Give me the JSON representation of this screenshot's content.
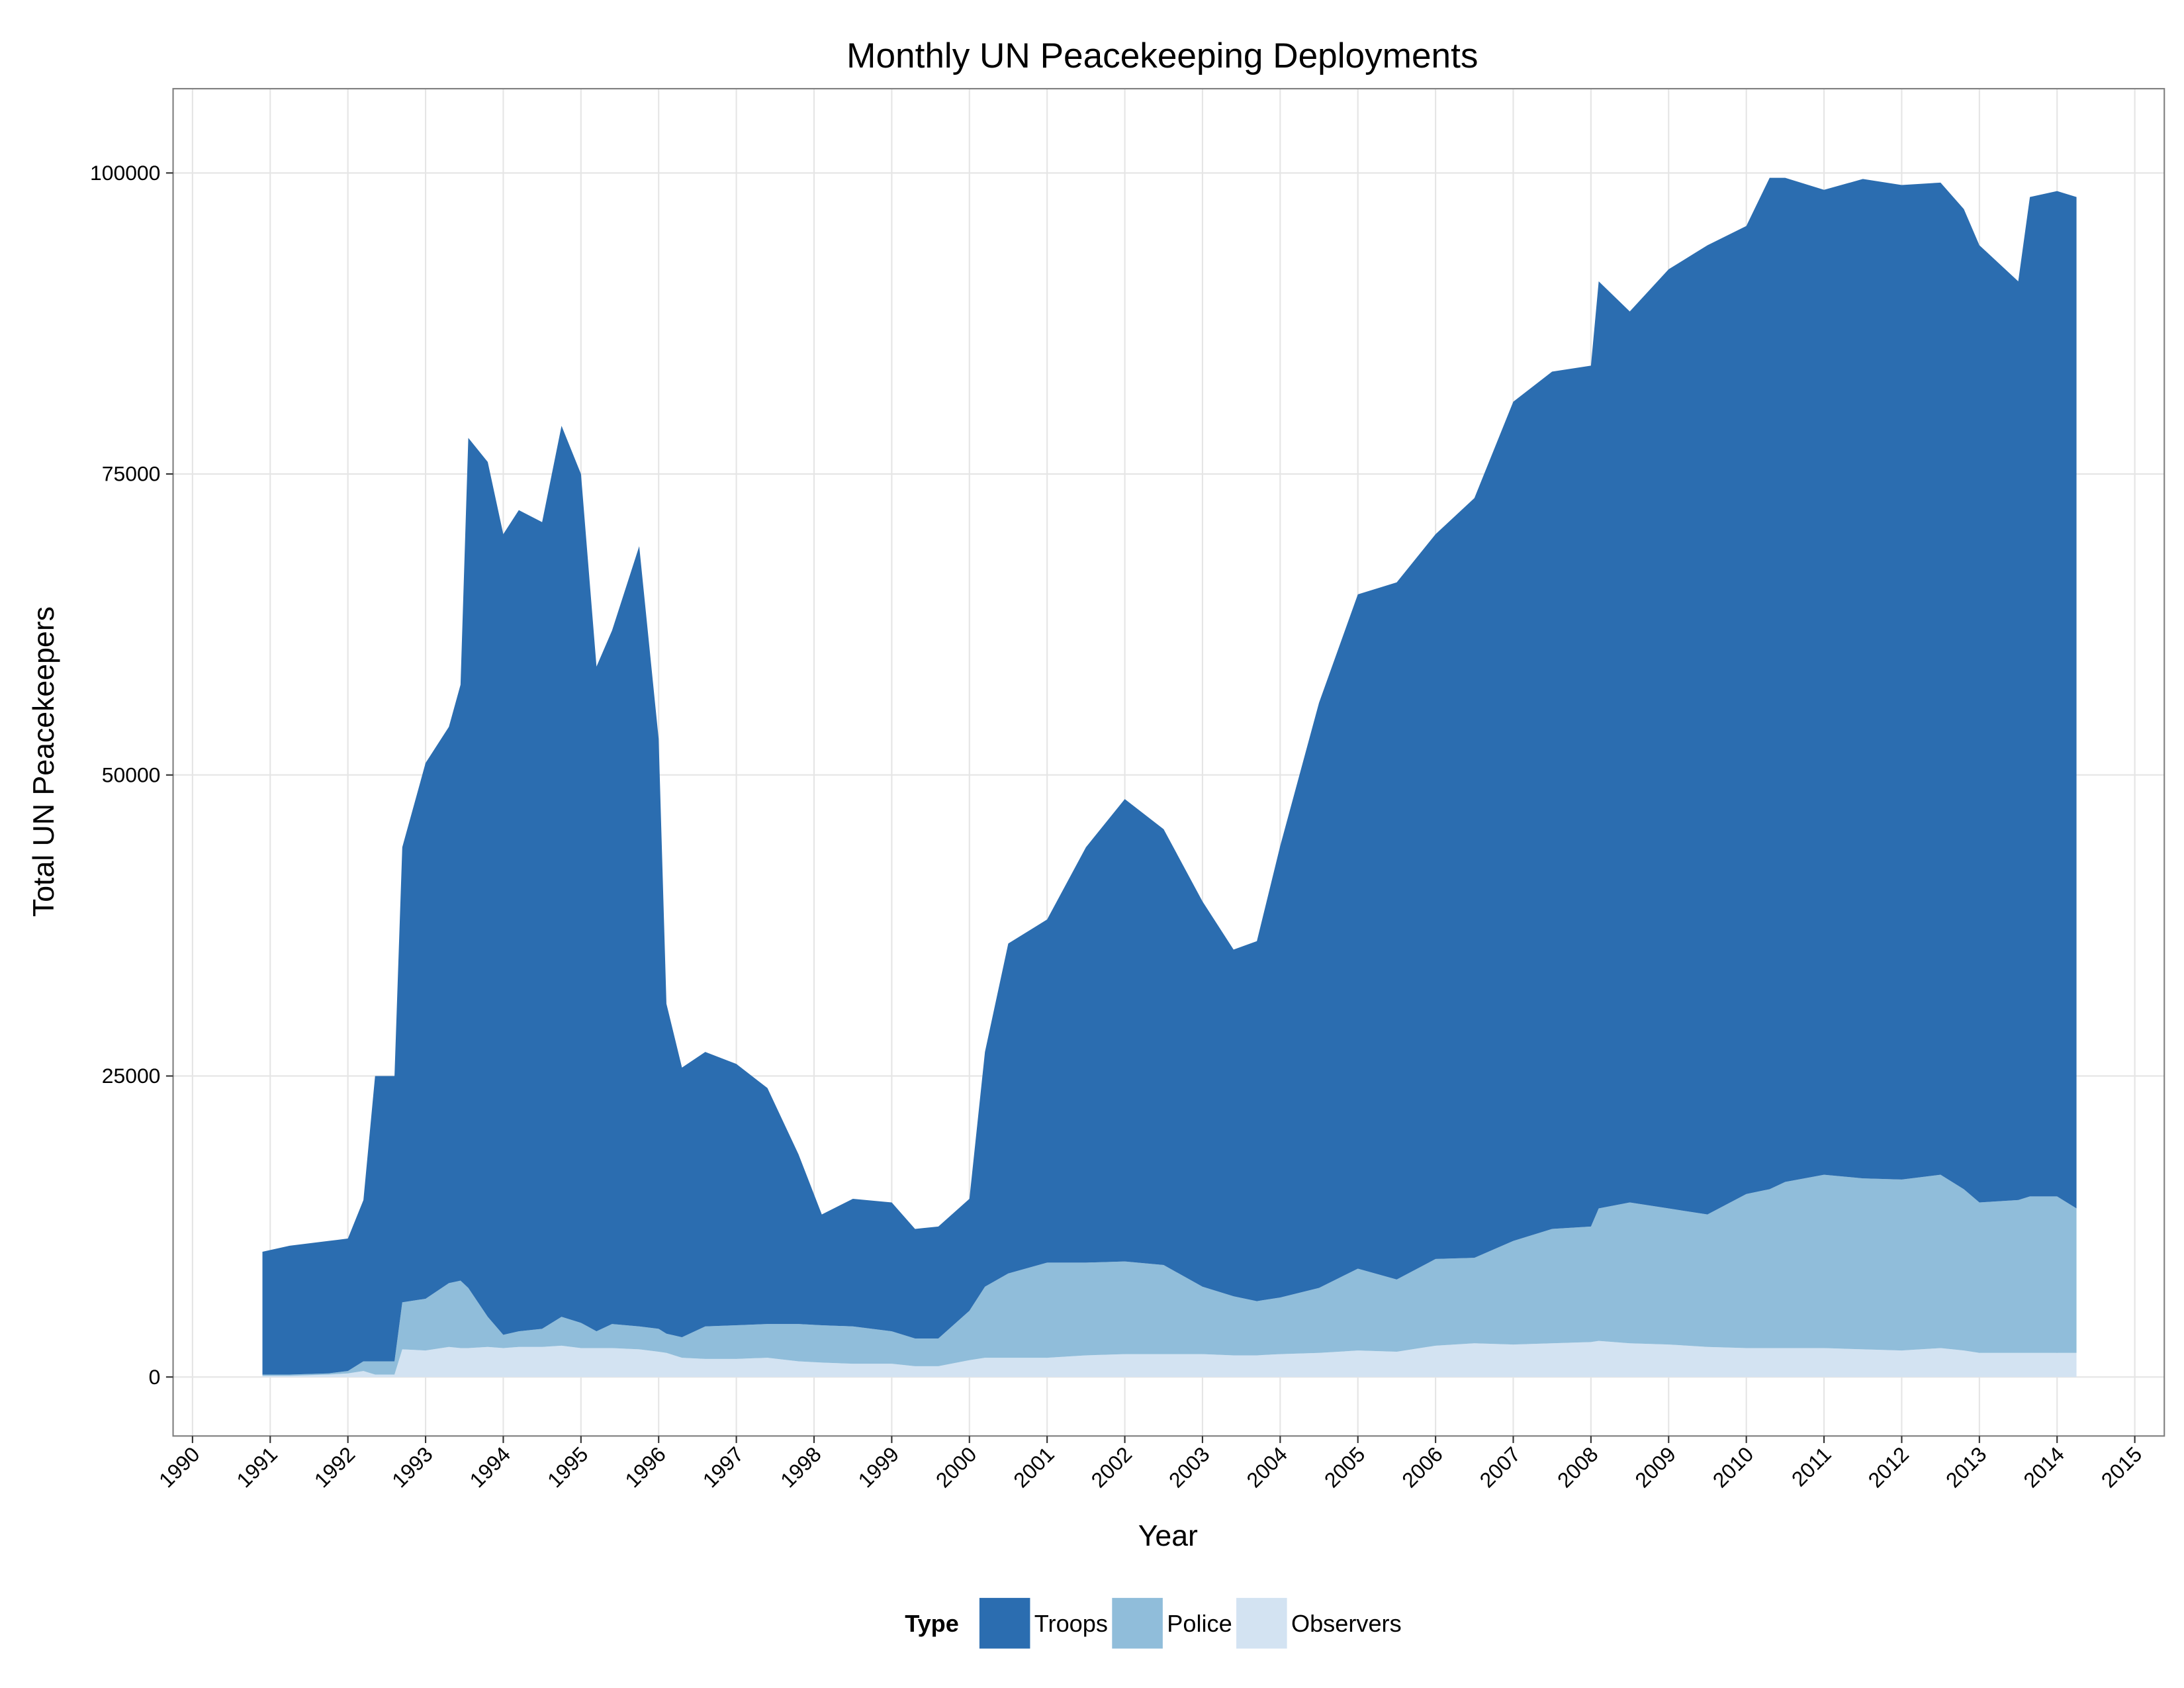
{
  "chart_data": {
    "type": "area",
    "title": "Monthly UN Peacekeeping Deployments",
    "x_label": "Year",
    "y_label": "Total UN Peacekeepers",
    "legend_title": "Type",
    "legend": "bottom",
    "stacked": true,
    "grid": true,
    "x": [
      1990.9,
      1991.25,
      1991.75,
      1992.0,
      1992.2,
      1992.35,
      1992.6,
      1992.7,
      1993.0,
      1993.3,
      1993.45,
      1993.55,
      1993.8,
      1994.0,
      1994.2,
      1994.5,
      1994.75,
      1995.0,
      1995.2,
      1995.4,
      1995.75,
      1996.0,
      1996.1,
      1996.3,
      1996.6,
      1997.0,
      1997.4,
      1997.8,
      1998.1,
      1998.5,
      1999.0,
      1999.3,
      1999.6,
      2000.0,
      2000.2,
      2000.5,
      2001.0,
      2001.5,
      2002.0,
      2002.5,
      2003.0,
      2003.4,
      2003.7,
      2004.0,
      2004.5,
      2005.0,
      2005.5,
      2006.0,
      2006.5,
      2007.0,
      2007.5,
      2008.0,
      2008.1,
      2008.5,
      2009.0,
      2009.5,
      2010.0,
      2010.3,
      2010.5,
      2011.0,
      2011.5,
      2012.0,
      2012.5,
      2012.8,
      2013.0,
      2013.5,
      2013.65,
      2014.0,
      2014.25
    ],
    "series": [
      {
        "name": "Troops",
        "color": "#2b6db0",
        "values": [
          10200,
          10700,
          11000,
          11000,
          13400,
          23700,
          23700,
          37800,
          44500,
          46200,
          49500,
          70600,
          71000,
          66500,
          68200,
          67000,
          74000,
          70500,
          55200,
          57600,
          64800,
          49000,
          27400,
          22400,
          22800,
          21700,
          19600,
          14100,
          9200,
          10600,
          10700,
          9100,
          9300,
          9300,
          19500,
          27400,
          28500,
          34500,
          38400,
          36200,
          32000,
          28800,
          29900,
          37500,
          48600,
          56000,
          57900,
          60200,
          63100,
          69700,
          71200,
          71500,
          77000,
          74000,
          78000,
          80500,
          80400,
          84000,
          83400,
          81800,
          83000,
          82600,
          82400,
          81400,
          79500,
          76300,
          83000,
          83500,
          84000
        ]
      },
      {
        "name": "Police",
        "color": "#90bdda",
        "values": [
          100,
          100,
          100,
          200,
          800,
          1100,
          1100,
          3900,
          4300,
          5300,
          5600,
          5000,
          2500,
          1100,
          1300,
          1500,
          2400,
          2100,
          1400,
          2000,
          1900,
          1900,
          1600,
          1700,
          2700,
          2800,
          2800,
          3100,
          3100,
          3100,
          2700,
          2300,
          2300,
          4100,
          5900,
          7000,
          7900,
          7700,
          7700,
          7400,
          5600,
          4900,
          4500,
          4700,
          5400,
          6800,
          6000,
          7200,
          7100,
          8600,
          9500,
          9600,
          11000,
          11700,
          11300,
          11000,
          12800,
          13200,
          13800,
          14400,
          14200,
          14200,
          14400,
          13400,
          12500,
          12700,
          13000,
          13000,
          12000
        ]
      },
      {
        "name": "Observers",
        "color": "#d3e3f2",
        "values": [
          100,
          100,
          200,
          300,
          500,
          200,
          200,
          2300,
          2200,
          2500,
          2400,
          2400,
          2500,
          2400,
          2500,
          2500,
          2600,
          2400,
          2400,
          2400,
          2300,
          2100,
          2000,
          1600,
          1500,
          1500,
          1600,
          1300,
          1200,
          1100,
          1100,
          900,
          900,
          1400,
          1600,
          1600,
          1600,
          1800,
          1900,
          1900,
          1900,
          1800,
          1800,
          1900,
          2000,
          2200,
          2100,
          2600,
          2800,
          2700,
          2800,
          2900,
          3000,
          2800,
          2700,
          2500,
          2400,
          2400,
          2400,
          2400,
          2300,
          2200,
          2400,
          2200,
          2000,
          2000,
          2000,
          2000,
          2000
        ]
      }
    ],
    "xlim": [
      1989.75,
      2015.38
    ],
    "xticks": [
      1990,
      1991,
      1992,
      1993,
      1994,
      1995,
      1996,
      1997,
      1998,
      1999,
      2000,
      2001,
      2002,
      2003,
      2004,
      2005,
      2006,
      2007,
      2008,
      2009,
      2010,
      2011,
      2012,
      2013,
      2014,
      2015
    ],
    "ylim": [
      -4900,
      107000
    ],
    "yticks": [
      0,
      25000,
      50000,
      75000,
      100000
    ]
  }
}
